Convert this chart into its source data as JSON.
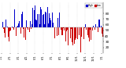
{
  "title": "",
  "ylim": [
    10,
    100
  ],
  "num_bars": 365,
  "background_color": "#ffffff",
  "bar_width": 0.8,
  "legend_blue_label": "High",
  "legend_red_label": "Low",
  "blue_color": "#0000cc",
  "red_color": "#cc0000",
  "grid_color": "#bbbbbb",
  "avg_humidity": 55,
  "yticks": [
    20,
    30,
    40,
    50,
    60,
    70,
    80
  ],
  "ytick_fontsize": 3.0,
  "xtick_fontsize": 2.5
}
